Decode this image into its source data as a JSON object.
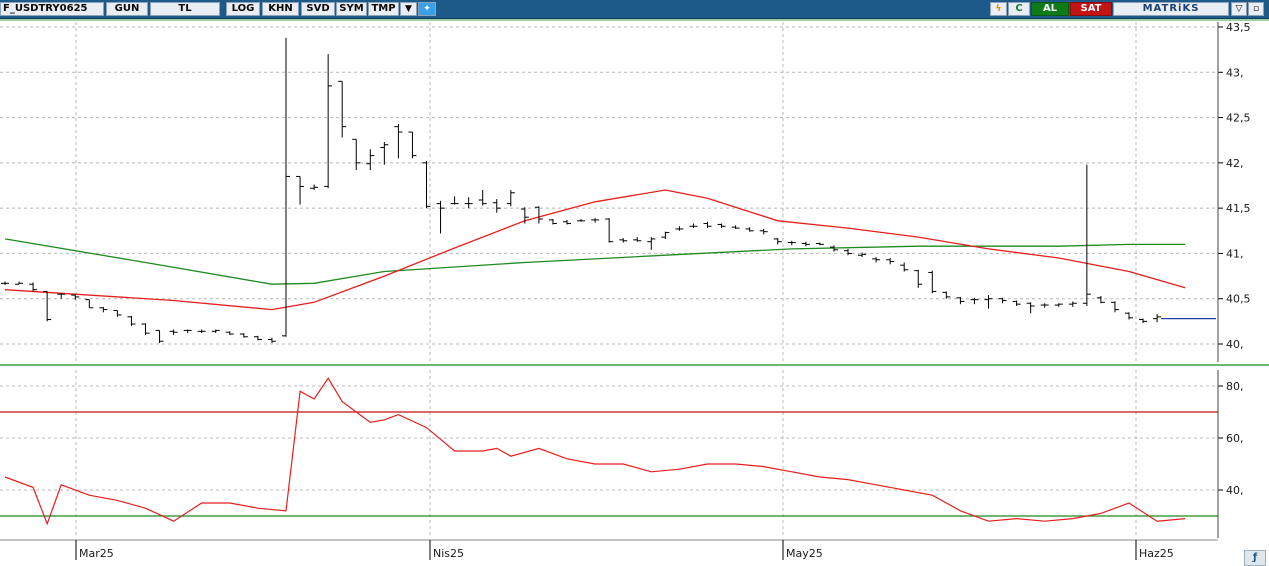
{
  "toolbar": {
    "symbol": "F_USDTRY0625",
    "period": "GUN",
    "currency": "TL",
    "log": "LOG",
    "khn": "KHN",
    "svd": "SVD",
    "sym": "SYM",
    "tmp": "TMP",
    "dropdown_icon": "triangle-down-icon",
    "twitter_icon": "bird-icon",
    "bolt_icon": "lightning-icon",
    "refresh_label": "C",
    "buy": "AL",
    "sell": "SAT",
    "brand": "MATRiKS",
    "minimize_icon": "triangle-down-icon",
    "restore_icon": "square-icon"
  },
  "colors": {
    "toolbar_bg": "#1d5a8a",
    "price_bar": "#000000",
    "ma_fast": "#e61e1e",
    "ma_slow": "#1f8a1f",
    "rsi_line": "#e61e1e",
    "rsi_upper": "#c01010",
    "rsi_lower": "#1f8a1f",
    "grid": "#b8b8b8",
    "last_price_marker": "#2244aa"
  },
  "chart_data": [
    {
      "type": "ohlc",
      "x_labels": [
        "Mar25",
        "Nis25",
        "May25",
        "Haz25"
      ],
      "y_ticks": [
        "40,",
        "40,5",
        "41,",
        "41,5",
        "42,",
        "42,5",
        "43,",
        "43,5"
      ],
      "ylim": [
        39.85,
        43.55
      ],
      "grid": true,
      "bars": [
        [
          40.67,
          40.69,
          40.65,
          40.67
        ],
        [
          40.66,
          40.69,
          40.66,
          40.67
        ],
        [
          40.66,
          40.68,
          40.58,
          40.6
        ],
        [
          40.58,
          40.58,
          40.25,
          40.27
        ],
        [
          40.55,
          40.56,
          40.5,
          40.55
        ],
        [
          40.54,
          40.55,
          40.49,
          40.52
        ],
        [
          40.49,
          40.49,
          40.4,
          40.4
        ],
        [
          40.4,
          40.41,
          40.35,
          40.38
        ],
        [
          40.37,
          40.37,
          40.3,
          40.32
        ],
        [
          40.3,
          40.31,
          40.2,
          40.22
        ],
        [
          40.22,
          40.23,
          40.1,
          40.12
        ],
        [
          40.15,
          40.15,
          40.01,
          40.03
        ],
        [
          40.14,
          40.16,
          40.1,
          40.13
        ],
        [
          40.15,
          40.16,
          40.12,
          40.15
        ],
        [
          40.14,
          40.16,
          40.12,
          40.14
        ],
        [
          40.14,
          40.16,
          40.12,
          40.15
        ],
        [
          40.13,
          40.14,
          40.1,
          40.11
        ],
        [
          40.11,
          40.12,
          40.07,
          40.08
        ],
        [
          40.08,
          40.09,
          40.04,
          40.05
        ],
        [
          40.05,
          40.07,
          40.01,
          40.03
        ],
        [
          40.09,
          43.38,
          40.08,
          41.85
        ],
        [
          41.85,
          41.85,
          41.54,
          41.74
        ],
        [
          41.72,
          41.76,
          41.7,
          41.73
        ],
        [
          41.74,
          43.2,
          41.72,
          42.85
        ],
        [
          42.9,
          42.9,
          42.28,
          42.4
        ],
        [
          42.26,
          42.26,
          41.92,
          42.0
        ],
        [
          41.99,
          42.15,
          41.92,
          42.08
        ],
        [
          42.17,
          42.23,
          41.98,
          42.2
        ],
        [
          42.4,
          42.43,
          42.05,
          42.34
        ],
        [
          42.34,
          42.34,
          42.05,
          42.08
        ],
        [
          42.0,
          42.02,
          41.5,
          41.52
        ],
        [
          41.55,
          41.58,
          41.22,
          41.5
        ],
        [
          41.55,
          41.63,
          41.54,
          41.55
        ],
        [
          41.55,
          41.62,
          41.5,
          41.55
        ],
        [
          41.59,
          41.7,
          41.53,
          41.55
        ],
        [
          41.56,
          41.6,
          41.45,
          41.5
        ],
        [
          41.55,
          41.7,
          41.52,
          41.67
        ],
        [
          41.49,
          41.51,
          41.33,
          41.4
        ],
        [
          41.51,
          41.52,
          41.33,
          41.38
        ],
        [
          41.37,
          41.38,
          41.32,
          41.33
        ],
        [
          41.35,
          41.37,
          41.32,
          41.33
        ],
        [
          41.36,
          41.38,
          41.35,
          41.36
        ],
        [
          41.37,
          41.39,
          41.34,
          41.37
        ],
        [
          41.38,
          41.39,
          41.12,
          41.13
        ],
        [
          41.15,
          41.17,
          41.12,
          41.14
        ],
        [
          41.15,
          41.18,
          41.13,
          41.14
        ],
        [
          41.13,
          41.18,
          41.04,
          41.16
        ],
        [
          41.18,
          41.24,
          41.16,
          41.23
        ],
        [
          41.27,
          41.3,
          41.25,
          41.27
        ],
        [
          41.3,
          41.33,
          41.28,
          41.3
        ],
        [
          41.33,
          41.35,
          41.28,
          41.3
        ],
        [
          41.32,
          41.33,
          41.28,
          41.3
        ],
        [
          41.29,
          41.31,
          41.27,
          41.28
        ],
        [
          41.27,
          41.29,
          41.24,
          41.25
        ],
        [
          41.25,
          41.27,
          41.21,
          41.24
        ],
        [
          41.16,
          41.17,
          41.1,
          41.13
        ],
        [
          41.12,
          41.14,
          41.09,
          41.12
        ],
        [
          41.11,
          41.13,
          41.08,
          41.1
        ],
        [
          41.11,
          41.12,
          41.09,
          41.1
        ],
        [
          41.07,
          41.09,
          41.02,
          41.04
        ],
        [
          41.03,
          41.05,
          40.98,
          41.0
        ],
        [
          40.98,
          41.01,
          40.96,
          40.99
        ],
        [
          40.94,
          40.96,
          40.9,
          40.93
        ],
        [
          40.93,
          40.95,
          40.88,
          40.91
        ],
        [
          40.87,
          40.9,
          40.8,
          40.82
        ],
        [
          40.81,
          40.82,
          40.62,
          40.66
        ],
        [
          40.79,
          40.81,
          40.56,
          40.58
        ],
        [
          40.57,
          40.58,
          40.5,
          40.52
        ],
        [
          40.51,
          40.52,
          40.44,
          40.47
        ],
        [
          40.49,
          40.51,
          40.44,
          40.49
        ],
        [
          40.49,
          40.54,
          40.39,
          40.5
        ],
        [
          40.5,
          40.51,
          40.45,
          40.48
        ],
        [
          40.47,
          40.48,
          40.42,
          40.44
        ],
        [
          40.45,
          40.46,
          40.34,
          40.42
        ],
        [
          40.43,
          40.45,
          40.4,
          40.43
        ],
        [
          40.43,
          40.45,
          40.41,
          40.44
        ],
        [
          40.44,
          40.47,
          40.41,
          40.45
        ],
        [
          40.45,
          41.98,
          40.42,
          40.55
        ],
        [
          40.51,
          40.53,
          40.45,
          40.46
        ],
        [
          40.46,
          40.47,
          40.35,
          40.38
        ],
        [
          40.34,
          40.35,
          40.27,
          40.29
        ],
        [
          40.27,
          40.28,
          40.23,
          40.25
        ],
        [
          40.28,
          40.33,
          40.24,
          40.3
        ]
      ],
      "ma_fast": {
        "x": [
          0,
          12,
          19,
          22,
          27,
          32,
          37,
          42,
          47,
          50,
          55,
          60,
          65,
          70,
          75,
          80,
          84
        ],
        "y": [
          40.6,
          40.48,
          40.38,
          40.46,
          40.75,
          41.06,
          41.36,
          41.57,
          41.7,
          41.61,
          41.36,
          41.28,
          41.18,
          41.05,
          40.95,
          40.8,
          40.62
        ]
      },
      "ma_slow": {
        "x": [
          0,
          10,
          19,
          22,
          27,
          32,
          37,
          47,
          56,
          65,
          70,
          75,
          80,
          84
        ],
        "y": [
          41.16,
          40.9,
          40.66,
          40.67,
          40.8,
          40.85,
          40.9,
          40.98,
          41.05,
          41.08,
          41.08,
          41.08,
          41.1,
          41.1
        ]
      },
      "last_price": 40.28
    },
    {
      "type": "line",
      "y_ticks": [
        "40,",
        "60,",
        "80,"
      ],
      "ylim": [
        22,
        88
      ],
      "thresholds": [
        70,
        30
      ],
      "x": [
        0,
        2,
        3,
        4,
        6,
        8,
        10,
        12,
        14,
        16,
        18,
        20,
        21,
        22,
        23,
        24,
        26,
        27,
        28,
        30,
        32,
        34,
        35,
        36,
        38,
        40,
        42,
        44,
        46,
        48,
        50,
        52,
        54,
        56,
        58,
        60,
        62,
        64,
        66,
        68,
        70,
        72,
        74,
        76,
        78,
        80,
        82,
        84
      ],
      "values": [
        45,
        41,
        27,
        42,
        38,
        36,
        33,
        28,
        35,
        35,
        33,
        32,
        78,
        75,
        83,
        74,
        66,
        67,
        69,
        64,
        55,
        55,
        56,
        53,
        56,
        52,
        50,
        50,
        47,
        48,
        50,
        50,
        49,
        47,
        45,
        44,
        42,
        40,
        38,
        32,
        28,
        29,
        28,
        29,
        31,
        35,
        28,
        29
      ]
    }
  ]
}
